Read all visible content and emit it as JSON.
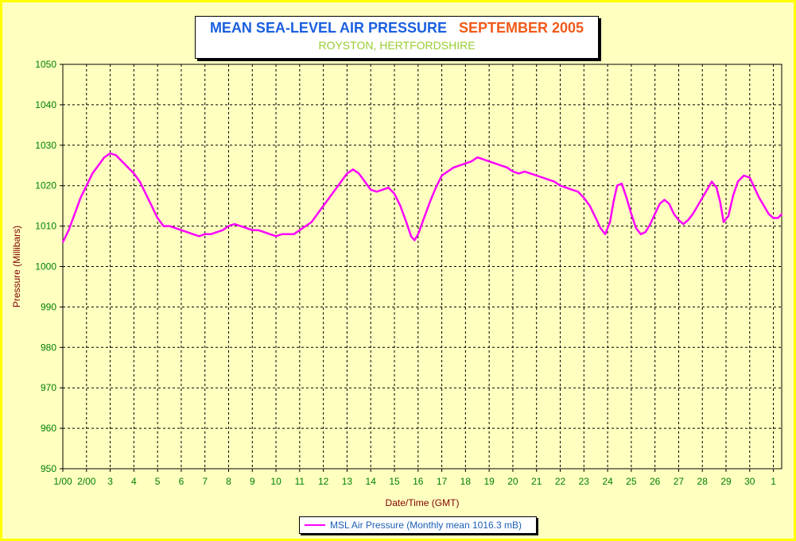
{
  "chart_data": {
    "type": "line",
    "title": "MEAN SEA-LEVEL AIR PRESSURE",
    "title_period": "SEPTEMBER 2005",
    "subtitle": "ROYSTON, HERTFORDSHIRE",
    "xlabel": "Date/Time (GMT)",
    "ylabel": "Pressure (Millibars)",
    "ylim": [
      950,
      1050
    ],
    "yticks": [
      950,
      960,
      970,
      980,
      990,
      1000,
      1010,
      1020,
      1030,
      1040,
      1050
    ],
    "xlim": [
      1,
      31.35
    ],
    "xticks": [
      {
        "x": 1,
        "label": "1/00"
      },
      {
        "x": 2,
        "label": "2/00"
      },
      {
        "x": 3,
        "label": "3"
      },
      {
        "x": 4,
        "label": "4"
      },
      {
        "x": 5,
        "label": "5"
      },
      {
        "x": 6,
        "label": "6"
      },
      {
        "x": 7,
        "label": "7"
      },
      {
        "x": 8,
        "label": "8"
      },
      {
        "x": 9,
        "label": "9"
      },
      {
        "x": 10,
        "label": "10"
      },
      {
        "x": 11,
        "label": "11"
      },
      {
        "x": 12,
        "label": "12"
      },
      {
        "x": 13,
        "label": "13"
      },
      {
        "x": 14,
        "label": "14"
      },
      {
        "x": 15,
        "label": "15"
      },
      {
        "x": 16,
        "label": "16"
      },
      {
        "x": 17,
        "label": "17"
      },
      {
        "x": 18,
        "label": "18"
      },
      {
        "x": 19,
        "label": "19"
      },
      {
        "x": 20,
        "label": "20"
      },
      {
        "x": 21,
        "label": "21"
      },
      {
        "x": 22,
        "label": "22"
      },
      {
        "x": 23,
        "label": "23"
      },
      {
        "x": 24,
        "label": "24"
      },
      {
        "x": 25,
        "label": "25"
      },
      {
        "x": 26,
        "label": "26"
      },
      {
        "x": 27,
        "label": "27"
      },
      {
        "x": 28,
        "label": "28"
      },
      {
        "x": 29,
        "label": "29"
      },
      {
        "x": 30,
        "label": "30"
      },
      {
        "x": 31,
        "label": "1"
      }
    ],
    "grid": true,
    "legend_position": "bottom-center",
    "series": [
      {
        "name": "MSL Air Pressure (Monthly mean 1016.3 mB)",
        "color": "#ff00ff",
        "x": [
          1.0,
          1.25,
          1.5,
          1.75,
          2.0,
          2.25,
          2.5,
          2.75,
          3.0,
          3.25,
          3.5,
          3.75,
          4.0,
          4.25,
          4.5,
          4.75,
          5.0,
          5.25,
          5.5,
          5.75,
          6.0,
          6.25,
          6.5,
          6.75,
          7.0,
          7.25,
          7.5,
          7.75,
          8.0,
          8.25,
          8.5,
          8.75,
          9.0,
          9.25,
          9.5,
          9.75,
          10.0,
          10.25,
          10.5,
          10.75,
          11.0,
          11.25,
          11.5,
          11.75,
          12.0,
          12.25,
          12.5,
          12.75,
          13.0,
          13.25,
          13.5,
          13.75,
          14.0,
          14.25,
          14.5,
          14.75,
          15.0,
          15.25,
          15.5,
          15.7,
          15.85,
          16.0,
          16.25,
          16.5,
          16.75,
          17.0,
          17.25,
          17.5,
          17.75,
          18.0,
          18.25,
          18.5,
          18.75,
          19.0,
          19.25,
          19.5,
          19.75,
          20.0,
          20.25,
          20.5,
          20.75,
          21.0,
          21.25,
          21.5,
          21.75,
          22.0,
          22.25,
          22.5,
          22.75,
          23.0,
          23.25,
          23.5,
          23.7,
          23.9,
          24.1,
          24.25,
          24.4,
          24.6,
          24.8,
          25.0,
          25.2,
          25.4,
          25.6,
          25.8,
          26.0,
          26.2,
          26.4,
          26.6,
          26.8,
          27.0,
          27.2,
          27.4,
          27.6,
          27.8,
          28.0,
          28.2,
          28.4,
          28.6,
          28.75,
          28.9,
          29.1,
          29.3,
          29.5,
          29.75,
          30.0,
          30.2,
          30.4,
          30.6,
          30.8,
          31.0,
          31.2,
          31.35
        ],
        "y": [
          1006,
          1009,
          1013,
          1017,
          1020,
          1023,
          1025,
          1027,
          1028,
          1027.5,
          1026,
          1024.5,
          1023,
          1021,
          1018,
          1015,
          1012,
          1010,
          1010,
          1009.5,
          1009,
          1008.5,
          1008,
          1007.5,
          1008,
          1008,
          1008.5,
          1009,
          1010,
          1010.5,
          1010,
          1009.5,
          1009,
          1009,
          1008.5,
          1008,
          1007.5,
          1008,
          1008,
          1008,
          1009,
          1010,
          1011,
          1013,
          1015,
          1017,
          1019,
          1021,
          1023,
          1024,
          1023,
          1021,
          1019,
          1018.5,
          1019,
          1019.5,
          1018,
          1015,
          1011,
          1007.5,
          1006.5,
          1008,
          1012,
          1016,
          1019.5,
          1022.5,
          1023.5,
          1024.5,
          1025,
          1025.5,
          1026,
          1027,
          1026.5,
          1026,
          1025.5,
          1025,
          1024.5,
          1023.5,
          1023,
          1023.5,
          1023,
          1022.5,
          1022,
          1021.5,
          1021,
          1020,
          1019.5,
          1019,
          1018.5,
          1017,
          1015,
          1012,
          1009.5,
          1008,
          1011,
          1016,
          1020,
          1020.5,
          1017,
          1013,
          1009.5,
          1008,
          1008.5,
          1010.5,
          1013,
          1015.5,
          1016.5,
          1015.5,
          1013,
          1011.5,
          1010.5,
          1011.5,
          1013,
          1015,
          1017,
          1019,
          1021,
          1019.5,
          1016,
          1011,
          1012.5,
          1017.5,
          1021,
          1022.5,
          1022,
          1019.5,
          1017,
          1015,
          1013,
          1012,
          1012,
          1013
        ]
      }
    ]
  }
}
